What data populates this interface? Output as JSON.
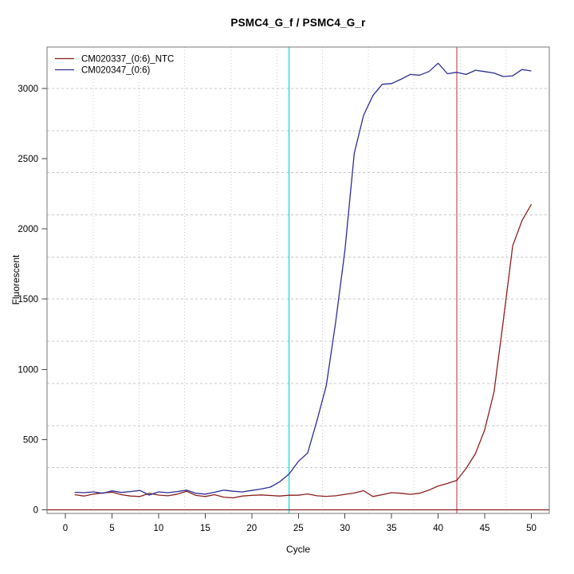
{
  "window": {
    "background": "#ffffff"
  },
  "chart_data": {
    "type": "line",
    "title": "PSMC4_G_f / PSMC4_G_r",
    "xlabel": "Cycle",
    "ylabel": "Fluorescent",
    "xlim": [
      -2,
      52
    ],
    "ylim": [
      -30,
      3300
    ],
    "x_ticks": [
      0,
      5,
      10,
      15,
      20,
      25,
      30,
      35,
      40,
      45,
      50
    ],
    "y_ticks": [
      0,
      500,
      1000,
      1500,
      2000,
      2500,
      3000
    ],
    "grid": {
      "on": true,
      "color": "#c8c8c8",
      "x_lines": [
        3.0,
        7.9,
        12.8,
        17.8,
        22.7,
        27.6,
        32.5,
        37.4,
        42.4,
        47.3
      ],
      "y_lines": [
        300,
        600,
        900,
        1200,
        1500,
        1800,
        2100,
        2400,
        2700,
        3000
      ]
    },
    "legend_position": "top-left",
    "x": [
      1,
      2,
      3,
      4,
      5,
      6,
      7,
      8,
      9,
      10,
      11,
      12,
      13,
      14,
      15,
      16,
      17,
      18,
      19,
      20,
      21,
      22,
      23,
      24,
      25,
      26,
      27,
      28,
      29,
      30,
      31,
      32,
      33,
      34,
      35,
      36,
      37,
      38,
      39,
      40,
      41,
      42,
      43,
      44,
      45,
      46,
      47,
      48,
      49,
      50
    ],
    "series": [
      {
        "name": "CM020337_(0:6)_NTC",
        "color": "#8b1f1f",
        "values": [
          108,
          98,
          112,
          120,
          126,
          108,
          98,
          95,
          118,
          105,
          100,
          112,
          132,
          103,
          95,
          108,
          90,
          85,
          98,
          103,
          106,
          102,
          98,
          104,
          104,
          113,
          100,
          96,
          100,
          110,
          120,
          136,
          95,
          108,
          122,
          118,
          110,
          118,
          140,
          170,
          188,
          210,
          295,
          400,
          570,
          840,
          1350,
          1880,
          2060,
          2175
        ]
      },
      {
        "name": "CM020347_(0:6)",
        "color": "#2d2d96",
        "values": [
          125,
          122,
          128,
          118,
          135,
          124,
          130,
          138,
          105,
          128,
          122,
          130,
          140,
          118,
          112,
          125,
          140,
          132,
          128,
          138,
          148,
          162,
          200,
          255,
          345,
          405,
          635,
          885,
          1335,
          1850,
          2540,
          2810,
          2950,
          3030,
          3035,
          3065,
          3100,
          3095,
          3120,
          3180,
          3105,
          3115,
          3100,
          3130,
          3120,
          3110,
          3085,
          3090,
          3135,
          3125
        ]
      }
    ],
    "reference_lines": [
      {
        "orientation": "vertical",
        "x": 24,
        "color": "#00dcdc",
        "name": "ct-marker-cyan"
      },
      {
        "orientation": "vertical",
        "x": 42,
        "color": "#c25555",
        "name": "ct-marker-red"
      },
      {
        "orientation": "horizontal",
        "y": 0,
        "color": "#8b1f1f",
        "name": "zero-baseline"
      }
    ]
  },
  "colors": {
    "axis_box": "#777777",
    "tick": "#444444",
    "grid": "#c8c8c8",
    "text": "#000000"
  }
}
